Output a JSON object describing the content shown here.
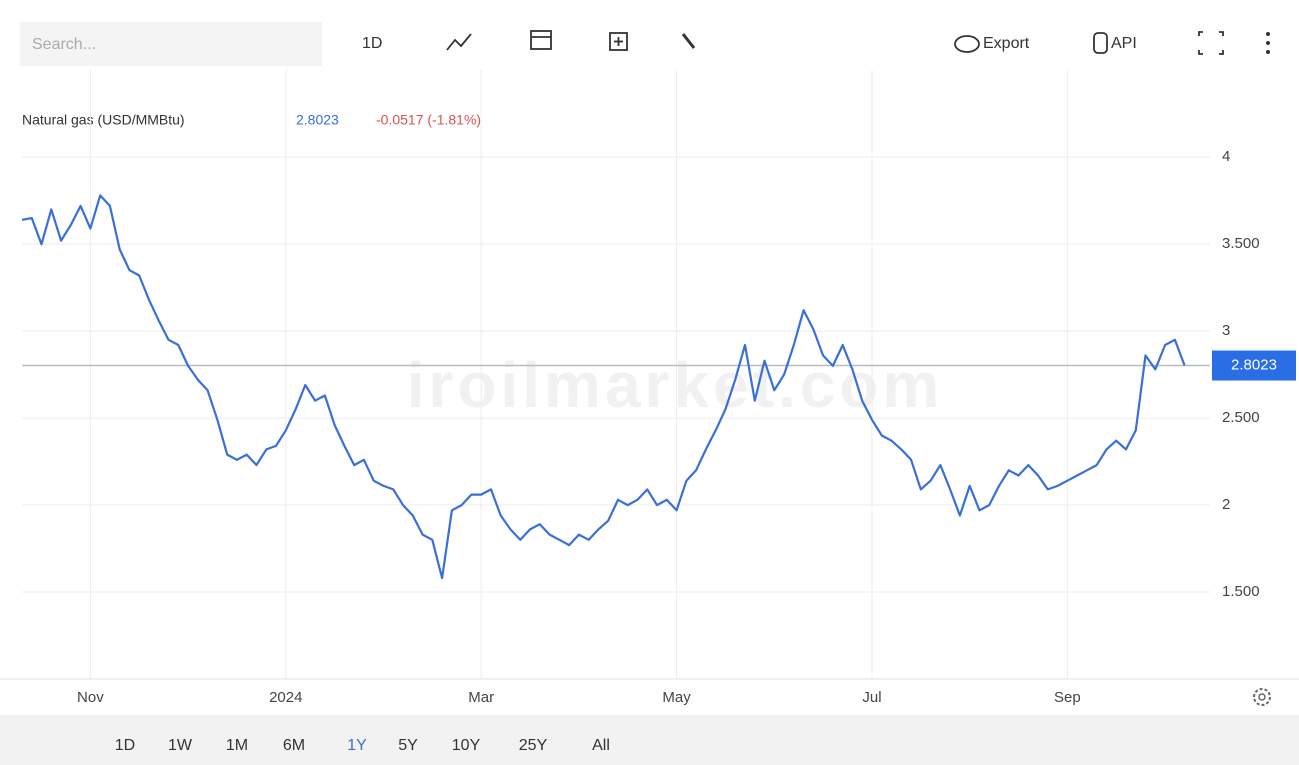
{
  "toolbar": {
    "search_placeholder": "Search...",
    "interval": "1D",
    "export": "Export",
    "api": "API"
  },
  "ranges": [
    "1D",
    "1W",
    "1M",
    "6M",
    "1Y",
    "5Y",
    "10Y",
    "25Y",
    "All"
  ],
  "active_range": "1Y",
  "chart_data": {
    "type": "line",
    "watermark": "iroilmarket.com",
    "change_label": "-0.0517 (-1.81%)",
    "change_color": "#d9534f",
    "categories": [
      null,
      null,
      null,
      null,
      null,
      null,
      null,
      "Nov",
      null,
      null,
      null,
      null,
      null,
      null,
      null,
      null,
      null,
      null,
      null,
      null,
      null,
      null,
      null,
      null,
      null,
      null,
      null,
      "2024",
      null,
      null,
      null,
      null,
      null,
      null,
      null,
      null,
      null,
      null,
      null,
      null,
      null,
      null,
      null,
      null,
      null,
      null,
      null,
      "Mar",
      null,
      null,
      null,
      null,
      null,
      null,
      null,
      null,
      null,
      null,
      null,
      null,
      null,
      null,
      null,
      null,
      null,
      null,
      null,
      "May",
      null,
      null,
      null,
      null,
      null,
      null,
      null,
      null,
      null,
      null,
      null,
      null,
      null,
      null,
      null,
      null,
      null,
      null,
      null,
      "Jul",
      null,
      null,
      null,
      null,
      null,
      null,
      null,
      null,
      null,
      null,
      null,
      null,
      null,
      null,
      null,
      null,
      null,
      null,
      null,
      "Sep",
      null,
      null,
      null,
      null,
      null,
      null,
      null,
      null,
      null,
      null,
      null,
      null
    ],
    "series": [
      {
        "name": "Natural gas (USD/MMBtu)",
        "color": "#3a6fd8",
        "values": [
          3.64,
          3.65,
          3.5,
          3.7,
          3.52,
          3.61,
          3.72,
          3.59,
          3.78,
          3.72,
          3.47,
          3.35,
          3.32,
          3.18,
          3.06,
          2.95,
          2.92,
          2.8,
          2.72,
          2.66,
          2.49,
          2.29,
          2.26,
          2.29,
          2.23,
          2.32,
          2.34,
          2.43,
          2.55,
          2.69,
          2.6,
          2.63,
          2.46,
          2.34,
          2.23,
          2.26,
          2.14,
          2.11,
          2.09,
          2.0,
          1.94,
          1.83,
          1.8,
          1.58,
          1.97,
          2.0,
          2.06,
          2.06,
          2.09,
          1.94,
          1.86,
          1.8,
          1.86,
          1.89,
          1.83,
          1.8,
          1.77,
          1.83,
          1.8,
          1.86,
          1.91,
          2.03,
          2.0,
          2.03,
          2.09,
          2.0,
          2.03,
          1.97,
          2.14,
          2.2,
          2.32,
          2.43,
          2.55,
          2.72,
          2.92,
          2.6,
          2.83,
          2.66,
          2.75,
          2.92,
          3.12,
          3.01,
          2.86,
          2.8,
          2.92,
          2.78,
          2.6,
          2.49,
          2.4,
          2.37,
          2.32,
          2.26,
          2.09,
          2.14,
          2.23,
          2.09,
          1.94,
          2.11,
          1.97,
          2.0,
          2.11,
          2.2,
          2.17,
          2.23,
          2.17,
          2.09,
          2.11,
          2.14,
          2.17,
          2.2,
          2.23,
          2.32,
          2.37,
          2.32,
          2.43,
          2.86,
          2.78,
          2.92,
          2.95,
          2.8023
        ]
      }
    ],
    "ylim": [
      1,
      4.3
    ],
    "yticks": [
      {
        "value": 1.5,
        "label": "1.500"
      },
      2,
      {
        "value": 2.5,
        "label": "2.500"
      },
      3,
      {
        "value": 3.5,
        "label": "3.500"
      },
      4
    ],
    "grid": true,
    "last_marker_color": "#2a6ee6"
  }
}
